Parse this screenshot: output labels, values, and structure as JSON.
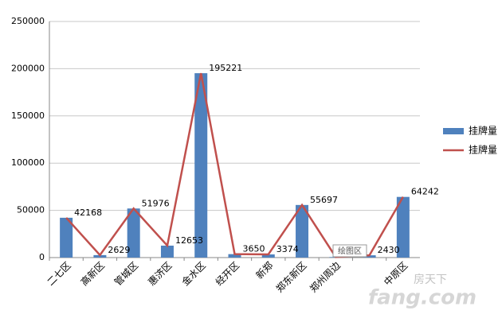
{
  "chart_data": {
    "type": "bar_line",
    "categories": [
      "二七区",
      "高新区",
      "管城区",
      "惠济区",
      "金水区",
      "经开区",
      "新郑",
      "郑东新区",
      "郑州周边",
      null,
      "中原区"
    ],
    "series": [
      {
        "name": "挂牌量",
        "kind": "bar",
        "color": "#4f81bd",
        "values": [
          42168,
          2629,
          51976,
          12653,
          195221,
          3650,
          3374,
          55697,
          566,
          2430,
          64242
        ]
      },
      {
        "name": "挂牌量",
        "kind": "line",
        "color": "#c0504d",
        "values": [
          42168,
          2629,
          51976,
          12653,
          195221,
          3650,
          3374,
          55697,
          566,
          2430,
          64242
        ]
      }
    ],
    "ylim": [
      0,
      250000
    ],
    "yticks": [
      0,
      50000,
      100000,
      150000,
      200000,
      250000
    ],
    "grid": true,
    "legend": "right",
    "tooltip": "绘图区",
    "watermark": [
      "房天下",
      "fang.com"
    ]
  }
}
